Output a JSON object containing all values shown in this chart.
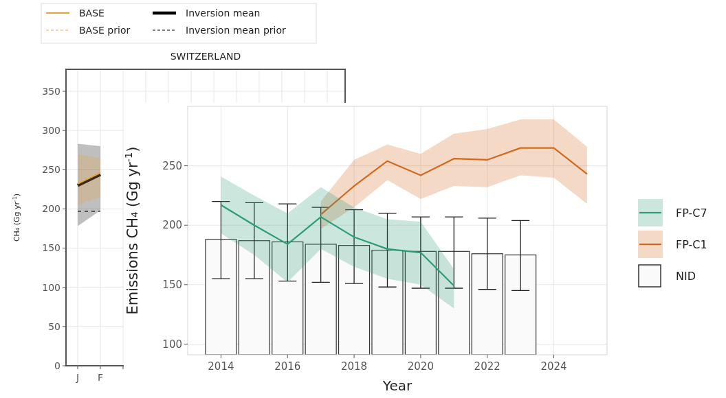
{
  "chart_data": [
    {
      "type": "line",
      "title": "SWITZERLAND",
      "ylabel": "CH₄ (Gg yr$^{-1}$)",
      "categories": [
        "J",
        "F",
        null,
        null,
        null,
        null,
        null,
        null,
        null,
        null,
        null,
        null
      ],
      "ylim": [
        0,
        378
      ],
      "yticks": [
        0,
        50,
        100,
        150,
        200,
        250,
        300,
        350
      ],
      "grid": true,
      "legend": "top",
      "series": [
        {
          "name": "BASE",
          "color": "#e8a33c",
          "values": [
            232,
            246,
            null,
            null,
            null,
            null,
            null,
            null,
            null,
            null,
            null,
            null
          ],
          "lower": [
            205,
            215,
            null,
            null,
            null,
            null,
            null,
            null,
            null,
            null,
            null,
            null
          ],
          "upper": [
            270,
            265,
            null,
            null,
            null,
            null,
            null,
            null,
            null,
            null,
            null,
            null
          ]
        },
        {
          "name": "BASE prior",
          "color": "#f3c58a",
          "line_style": "dashed",
          "values": [
            null,
            null,
            null,
            null,
            null,
            null,
            null,
            null,
            null,
            null,
            null,
            null
          ]
        },
        {
          "name": "Inversion mean",
          "color": "#000000",
          "values": [
            230,
            244,
            null,
            null,
            null,
            null,
            null,
            null,
            null,
            null,
            null,
            null
          ],
          "lower": [
            178,
            198,
            null,
            null,
            null,
            null,
            null,
            null,
            null,
            null,
            null,
            null
          ],
          "upper": [
            283,
            280,
            null,
            null,
            null,
            null,
            null,
            null,
            null,
            null,
            null,
            null
          ]
        },
        {
          "name": "Inversion mean prior",
          "color": "#555555",
          "line_style": "dashed",
          "values": [
            197,
            197,
            null,
            null,
            null,
            null,
            null,
            null,
            null,
            null,
            null,
            null
          ]
        }
      ]
    },
    {
      "type": "bar",
      "xlabel": "Year",
      "ylabel": "Emissions CH₄ (Gg yr$^{-1}$)",
      "xlim": [
        2013,
        2025.6
      ],
      "xticks": [
        2014,
        2016,
        2018,
        2020,
        2022,
        2024
      ],
      "ylim": [
        91,
        300
      ],
      "yticks": [
        100,
        150,
        200,
        250
      ],
      "grid": true,
      "legend": "right",
      "series": [
        {
          "name": "FP-C7",
          "type": "line",
          "color": "#2a9d78",
          "x": [
            2014,
            2015,
            2016,
            2017,
            2018,
            2019,
            2020,
            2021
          ],
          "values": [
            217,
            200,
            184,
            207,
            190,
            180,
            177,
            149
          ],
          "lower": [
            193,
            175,
            152,
            180,
            165,
            155,
            150,
            130
          ],
          "upper": [
            241,
            225,
            210,
            232,
            215,
            205,
            203,
            163
          ]
        },
        {
          "name": "FP-C1",
          "type": "line",
          "color": "#d2691e",
          "x": [
            2017,
            2018,
            2019,
            2020,
            2021,
            2022,
            2023,
            2024,
            2025
          ],
          "values": [
            209,
            233,
            254,
            242,
            256,
            255,
            265,
            265,
            243
          ],
          "lower": [
            197,
            215,
            238,
            222,
            233,
            232,
            242,
            240,
            218
          ],
          "upper": [
            220,
            255,
            268,
            260,
            277,
            281,
            289,
            289,
            266
          ]
        },
        {
          "name": "NID",
          "color": "#fafafa",
          "x": [
            2014,
            2015,
            2016,
            2017,
            2018,
            2019,
            2020,
            2021,
            2022,
            2023
          ],
          "values": [
            188,
            187,
            186,
            184,
            183,
            179,
            178,
            178,
            176,
            175
          ],
          "errors": [
            [
              155,
              220
            ],
            [
              155,
              219
            ],
            [
              153,
              218
            ],
            [
              152,
              215
            ],
            [
              151,
              213
            ],
            [
              148,
              210
            ],
            [
              147,
              207
            ],
            [
              147,
              207
            ],
            [
              146,
              206
            ],
            [
              145,
              204
            ]
          ]
        }
      ]
    }
  ]
}
